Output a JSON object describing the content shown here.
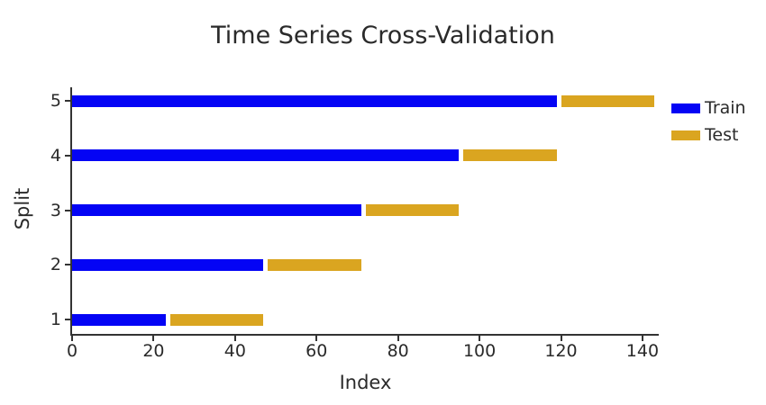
{
  "chart_data": {
    "type": "bar",
    "orientation": "horizontal",
    "title": "Time Series Cross-Validation",
    "xlabel": "Index",
    "ylabel": "Split",
    "x_ticks": [
      0,
      20,
      40,
      60,
      80,
      100,
      120,
      140
    ],
    "xlim": [
      0,
      144
    ],
    "y_categories": [
      "1",
      "2",
      "3",
      "4",
      "5"
    ],
    "grid": false,
    "legend_position": "top-right",
    "series": [
      {
        "name": "Train",
        "color": "#0404F5",
        "ranges": [
          [
            0,
            23
          ],
          [
            0,
            47
          ],
          [
            0,
            71
          ],
          [
            0,
            95
          ],
          [
            0,
            119
          ]
        ]
      },
      {
        "name": "Test",
        "color": "#DAA520",
        "ranges": [
          [
            24,
            47
          ],
          [
            48,
            71
          ],
          [
            72,
            95
          ],
          [
            96,
            119
          ],
          [
            120,
            143
          ]
        ]
      }
    ],
    "colors": {
      "text": "#2a2a2a",
      "axis": "#333333",
      "background": "#ffffff"
    }
  }
}
